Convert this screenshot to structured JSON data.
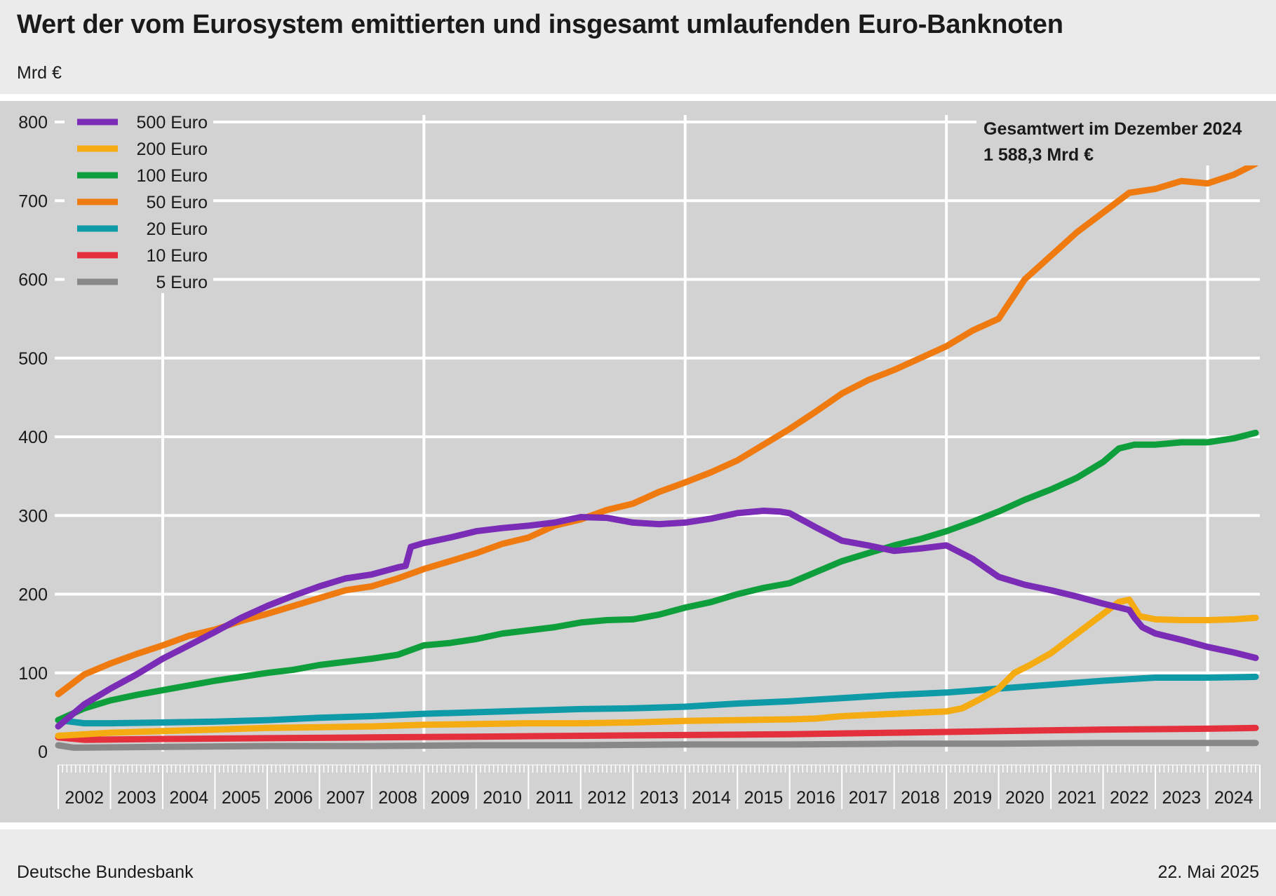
{
  "header": {
    "title": "Wert der vom Eurosystem emittierten und insgesamt umlaufenden Euro-Banknoten",
    "unit": "Mrd €"
  },
  "footer": {
    "source": "Deutsche Bundesbank",
    "date": "22. Mai 2025"
  },
  "annotation": {
    "line1": "Gesamtwert im  Dezember 2024",
    "line2": "1 588,3 Mrd €"
  },
  "chart_data": {
    "type": "line",
    "title": "Wert der vom Eurosystem emittierten und insgesamt umlaufenden Euro-Banknoten",
    "ylabel": "Mrd €",
    "xlabel": "",
    "ylim": [
      0,
      800
    ],
    "xlim": [
      2002.0,
      2025.0
    ],
    "yticks": [
      0,
      100,
      200,
      300,
      400,
      500,
      600,
      700,
      800
    ],
    "xticks": [
      "2002",
      "2003",
      "2004",
      "2005",
      "2006",
      "2007",
      "2008",
      "2009",
      "2010",
      "2011",
      "2012",
      "2013",
      "2014",
      "2015",
      "2016",
      "2017",
      "2018",
      "2019",
      "2020",
      "2021",
      "2022",
      "2023",
      "2024"
    ],
    "grid": true,
    "legend_position": "top-left",
    "series": [
      {
        "name": "500 Euro",
        "color": "#7b2cb6",
        "points": [
          [
            2002.0,
            32
          ],
          [
            2002.5,
            60
          ],
          [
            2003.0,
            80
          ],
          [
            2003.5,
            98
          ],
          [
            2004.0,
            118
          ],
          [
            2004.5,
            135
          ],
          [
            2005.0,
            152
          ],
          [
            2005.5,
            170
          ],
          [
            2006.0,
            185
          ],
          [
            2006.5,
            198
          ],
          [
            2007.0,
            210
          ],
          [
            2007.5,
            220
          ],
          [
            2008.0,
            225
          ],
          [
            2008.5,
            234
          ],
          [
            2008.65,
            236
          ],
          [
            2008.75,
            260
          ],
          [
            2009.0,
            265
          ],
          [
            2009.5,
            272
          ],
          [
            2010.0,
            280
          ],
          [
            2010.5,
            284
          ],
          [
            2011.0,
            287
          ],
          [
            2011.5,
            291
          ],
          [
            2012.0,
            298
          ],
          [
            2012.5,
            297
          ],
          [
            2013.0,
            291
          ],
          [
            2013.5,
            289
          ],
          [
            2014.0,
            291
          ],
          [
            2014.5,
            296
          ],
          [
            2015.0,
            303
          ],
          [
            2015.5,
            306
          ],
          [
            2015.8,
            305
          ],
          [
            2016.0,
            303
          ],
          [
            2016.5,
            285
          ],
          [
            2017.0,
            268
          ],
          [
            2017.5,
            262
          ],
          [
            2018.0,
            255
          ],
          [
            2018.5,
            258
          ],
          [
            2019.0,
            262
          ],
          [
            2019.5,
            245
          ],
          [
            2020.0,
            222
          ],
          [
            2020.5,
            212
          ],
          [
            2021.0,
            205
          ],
          [
            2021.5,
            197
          ],
          [
            2022.0,
            188
          ],
          [
            2022.5,
            180
          ],
          [
            2022.6,
            170
          ],
          [
            2022.75,
            158
          ],
          [
            2023.0,
            150
          ],
          [
            2023.5,
            142
          ],
          [
            2024.0,
            133
          ],
          [
            2024.5,
            126
          ],
          [
            2024.92,
            119
          ]
        ]
      },
      {
        "name": "200 Euro",
        "color": "#f5ab12",
        "points": [
          [
            2002.0,
            20
          ],
          [
            2003.0,
            24
          ],
          [
            2004.0,
            26
          ],
          [
            2005.0,
            28
          ],
          [
            2006.0,
            30
          ],
          [
            2007.0,
            31
          ],
          [
            2008.0,
            32
          ],
          [
            2009.0,
            34
          ],
          [
            2010.0,
            35
          ],
          [
            2011.0,
            36
          ],
          [
            2012.0,
            36
          ],
          [
            2013.0,
            37
          ],
          [
            2014.0,
            39
          ],
          [
            2015.0,
            40
          ],
          [
            2016.0,
            41
          ],
          [
            2016.5,
            42
          ],
          [
            2017.0,
            45
          ],
          [
            2018.0,
            48
          ],
          [
            2019.0,
            51
          ],
          [
            2019.3,
            55
          ],
          [
            2019.6,
            65
          ],
          [
            2020.0,
            80
          ],
          [
            2020.3,
            100
          ],
          [
            2020.6,
            110
          ],
          [
            2021.0,
            125
          ],
          [
            2021.5,
            150
          ],
          [
            2022.0,
            175
          ],
          [
            2022.3,
            190
          ],
          [
            2022.5,
            193
          ],
          [
            2022.7,
            172
          ],
          [
            2023.0,
            168
          ],
          [
            2023.5,
            167
          ],
          [
            2024.0,
            167
          ],
          [
            2024.5,
            168
          ],
          [
            2024.92,
            170
          ]
        ]
      },
      {
        "name": "100 Euro",
        "color": "#0f9e3c",
        "points": [
          [
            2002.0,
            40
          ],
          [
            2002.5,
            55
          ],
          [
            2003.0,
            65
          ],
          [
            2003.5,
            72
          ],
          [
            2004.0,
            78
          ],
          [
            2004.5,
            84
          ],
          [
            2005.0,
            90
          ],
          [
            2005.5,
            95
          ],
          [
            2006.0,
            100
          ],
          [
            2006.5,
            104
          ],
          [
            2007.0,
            110
          ],
          [
            2007.5,
            114
          ],
          [
            2008.0,
            118
          ],
          [
            2008.5,
            123
          ],
          [
            2009.0,
            135
          ],
          [
            2009.5,
            138
          ],
          [
            2010.0,
            143
          ],
          [
            2010.5,
            150
          ],
          [
            2011.0,
            154
          ],
          [
            2011.5,
            158
          ],
          [
            2012.0,
            164
          ],
          [
            2012.5,
            167
          ],
          [
            2013.0,
            168
          ],
          [
            2013.5,
            174
          ],
          [
            2014.0,
            183
          ],
          [
            2014.5,
            190
          ],
          [
            2015.0,
            200
          ],
          [
            2015.5,
            208
          ],
          [
            2016.0,
            214
          ],
          [
            2016.5,
            228
          ],
          [
            2017.0,
            242
          ],
          [
            2017.5,
            252
          ],
          [
            2018.0,
            262
          ],
          [
            2018.5,
            270
          ],
          [
            2019.0,
            280
          ],
          [
            2019.5,
            292
          ],
          [
            2020.0,
            305
          ],
          [
            2020.5,
            320
          ],
          [
            2021.0,
            333
          ],
          [
            2021.5,
            348
          ],
          [
            2022.0,
            368
          ],
          [
            2022.3,
            385
          ],
          [
            2022.6,
            390
          ],
          [
            2023.0,
            390
          ],
          [
            2023.5,
            393
          ],
          [
            2024.0,
            393
          ],
          [
            2024.5,
            398
          ],
          [
            2024.92,
            405
          ]
        ]
      },
      {
        "name": "50 Euro",
        "color": "#ef7a10",
        "points": [
          [
            2002.0,
            73
          ],
          [
            2002.5,
            98
          ],
          [
            2003.0,
            112
          ],
          [
            2003.5,
            124
          ],
          [
            2004.0,
            135
          ],
          [
            2004.5,
            147
          ],
          [
            2005.0,
            155
          ],
          [
            2005.5,
            166
          ],
          [
            2006.0,
            175
          ],
          [
            2006.5,
            185
          ],
          [
            2007.0,
            195
          ],
          [
            2007.5,
            205
          ],
          [
            2008.0,
            210
          ],
          [
            2008.5,
            220
          ],
          [
            2009.0,
            232
          ],
          [
            2009.5,
            242
          ],
          [
            2010.0,
            252
          ],
          [
            2010.5,
            264
          ],
          [
            2011.0,
            272
          ],
          [
            2011.5,
            287
          ],
          [
            2012.0,
            295
          ],
          [
            2012.5,
            307
          ],
          [
            2013.0,
            315
          ],
          [
            2013.5,
            330
          ],
          [
            2014.0,
            342
          ],
          [
            2014.5,
            355
          ],
          [
            2015.0,
            370
          ],
          [
            2015.5,
            390
          ],
          [
            2016.0,
            410
          ],
          [
            2016.5,
            432
          ],
          [
            2017.0,
            455
          ],
          [
            2017.5,
            472
          ],
          [
            2018.0,
            485
          ],
          [
            2018.5,
            500
          ],
          [
            2019.0,
            515
          ],
          [
            2019.5,
            535
          ],
          [
            2020.0,
            550
          ],
          [
            2020.5,
            600
          ],
          [
            2021.0,
            630
          ],
          [
            2021.5,
            660
          ],
          [
            2022.0,
            685
          ],
          [
            2022.5,
            710
          ],
          [
            2023.0,
            715
          ],
          [
            2023.5,
            725
          ],
          [
            2024.0,
            722
          ],
          [
            2024.5,
            733
          ],
          [
            2024.92,
            747
          ]
        ]
      },
      {
        "name": "20 Euro",
        "color": "#0f9aa8",
        "points": [
          [
            2002.0,
            40
          ],
          [
            2002.5,
            36
          ],
          [
            2003.0,
            36
          ],
          [
            2004.0,
            37
          ],
          [
            2005.0,
            38
          ],
          [
            2006.0,
            40
          ],
          [
            2007.0,
            43
          ],
          [
            2008.0,
            45
          ],
          [
            2009.0,
            48
          ],
          [
            2010.0,
            50
          ],
          [
            2011.0,
            52
          ],
          [
            2012.0,
            54
          ],
          [
            2013.0,
            55
          ],
          [
            2014.0,
            57
          ],
          [
            2015.0,
            61
          ],
          [
            2016.0,
            64
          ],
          [
            2017.0,
            68
          ],
          [
            2018.0,
            72
          ],
          [
            2019.0,
            75
          ],
          [
            2020.0,
            80
          ],
          [
            2021.0,
            85
          ],
          [
            2022.0,
            90
          ],
          [
            2023.0,
            94
          ],
          [
            2024.0,
            94
          ],
          [
            2024.92,
            95
          ]
        ]
      },
      {
        "name": "10 Euro",
        "color": "#e3303c",
        "points": [
          [
            2002.0,
            18
          ],
          [
            2002.5,
            15
          ],
          [
            2004.0,
            16
          ],
          [
            2006.0,
            17
          ],
          [
            2008.0,
            18
          ],
          [
            2010.0,
            19
          ],
          [
            2012.0,
            20
          ],
          [
            2014.0,
            21
          ],
          [
            2016.0,
            22
          ],
          [
            2018.0,
            24
          ],
          [
            2020.0,
            26
          ],
          [
            2022.0,
            28
          ],
          [
            2024.0,
            29
          ],
          [
            2024.92,
            30
          ]
        ]
      },
      {
        "name": "5 Euro",
        "color": "#888888",
        "points": [
          [
            2002.0,
            8
          ],
          [
            2002.3,
            5
          ],
          [
            2004.0,
            6
          ],
          [
            2006.0,
            7
          ],
          [
            2008.0,
            7
          ],
          [
            2010.0,
            8
          ],
          [
            2012.0,
            8
          ],
          [
            2014.0,
            9
          ],
          [
            2016.0,
            9
          ],
          [
            2018.0,
            10
          ],
          [
            2020.0,
            10
          ],
          [
            2022.0,
            11
          ],
          [
            2024.0,
            11
          ],
          [
            2024.92,
            11
          ]
        ]
      }
    ]
  }
}
